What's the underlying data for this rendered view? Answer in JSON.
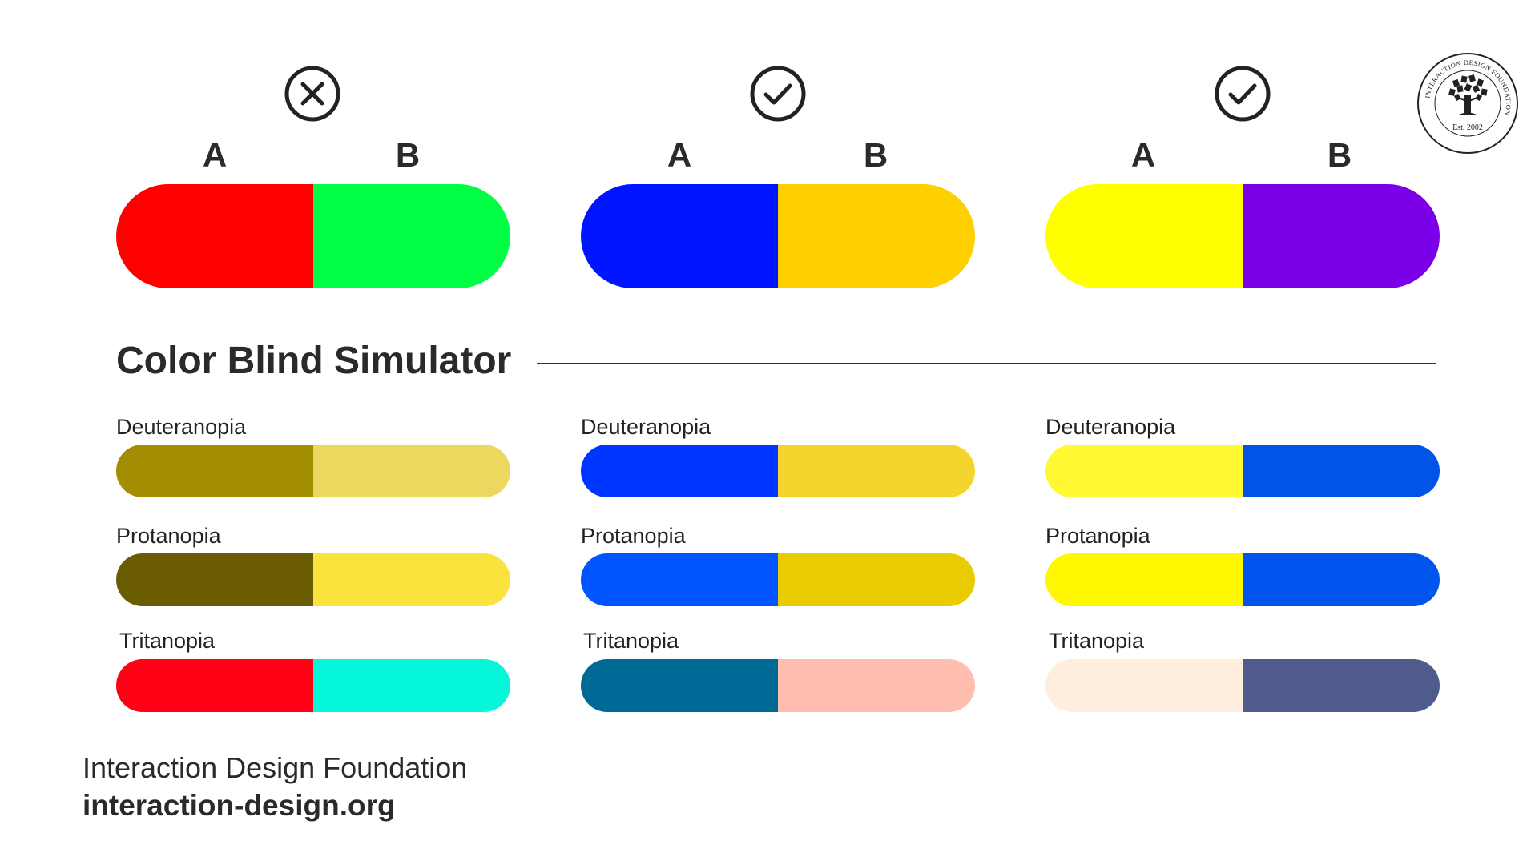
{
  "logo": {
    "ring_text": "INTERACTION DESIGN FOUNDATION",
    "est": "Est. 2002",
    "icon": "tree-book-seal-icon"
  },
  "comparisons": [
    {
      "status": "bad",
      "status_icon": "x-circle-icon",
      "label_a": "A",
      "label_b": "B",
      "color_a": "#ff0000",
      "color_b": "#00ff44"
    },
    {
      "status": "good",
      "status_icon": "check-circle-icon",
      "label_a": "A",
      "label_b": "B",
      "color_a": "#0015ff",
      "color_b": "#ffd000"
    },
    {
      "status": "good",
      "status_icon": "check-circle-icon",
      "label_a": "A",
      "label_b": "B",
      "color_a": "#ffff00",
      "color_b": "#7b00e8"
    }
  ],
  "section": {
    "title": "Color Blind Simulator"
  },
  "simulations": [
    [
      {
        "label": "Deuteranopia",
        "color_a": "#a38d00",
        "color_b": "#ecd85f"
      },
      {
        "label": "Protanopia",
        "color_a": "#6b5b00",
        "color_b": "#fbe33d"
      },
      {
        "label": "Tritanopia",
        "color_a": "#ff0014",
        "color_b": "#05f6d8"
      }
    ],
    [
      {
        "label": "Deuteranopia",
        "color_a": "#0036ff",
        "color_b": "#f3d52d"
      },
      {
        "label": "Protanopia",
        "color_a": "#0055ff",
        "color_b": "#e8cb00"
      },
      {
        "label": "Tritanopia",
        "color_a": "#006a96",
        "color_b": "#ffbdb0"
      }
    ],
    [
      {
        "label": "Deuteranopia",
        "color_a": "#fff833",
        "color_b": "#0055e8"
      },
      {
        "label": "Protanopia",
        "color_a": "#fff700",
        "color_b": "#0055ee"
      },
      {
        "label": "Tritanopia",
        "color_a": "#ffeedd",
        "color_b": "#4f5b8a"
      }
    ]
  ],
  "footer": {
    "organization": "Interaction Design Foundation",
    "url": "interaction-design.org"
  }
}
